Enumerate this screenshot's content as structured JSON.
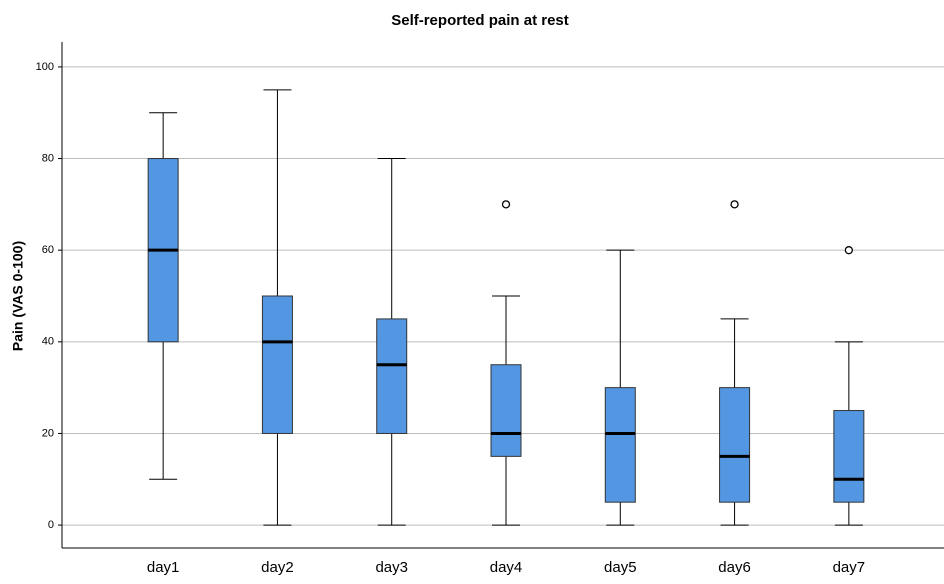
{
  "chart_data": {
    "type": "box",
    "title": "Self-reported pain at rest",
    "y_label": "Pain (VAS 0-100)",
    "categories": [
      "day1",
      "day2",
      "day3",
      "day4",
      "day5",
      "day6",
      "day7"
    ],
    "whisker_low": [
      10,
      0,
      0,
      0,
      0,
      0,
      0
    ],
    "q1": [
      40,
      20,
      20,
      15,
      5,
      5,
      5
    ],
    "median": [
      60,
      40,
      35,
      20,
      20,
      15,
      10
    ],
    "q3": [
      80,
      50,
      45,
      35,
      30,
      30,
      25
    ],
    "whisker_high": [
      90,
      95,
      80,
      50,
      60,
      45,
      40
    ],
    "outliers": [
      [],
      [],
      [],
      [
        70
      ],
      [],
      [
        70
      ],
      [
        60
      ]
    ],
    "color": "#5397e3",
    "ylim": [
      -5,
      105
    ],
    "yticks": [
      0,
      20,
      40,
      60,
      80,
      100
    ],
    "grid": true
  }
}
